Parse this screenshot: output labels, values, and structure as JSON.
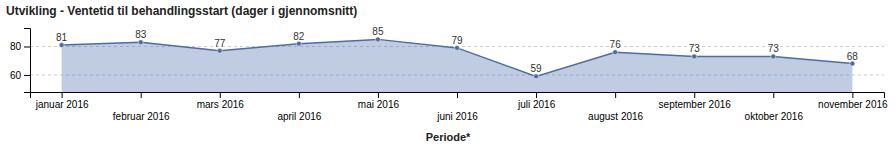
{
  "chart_data": {
    "type": "area",
    "title": "Utvikling - Ventetid til behandlingsstart (dager i gjennomsnitt)",
    "x_label": "Periode*",
    "categories": [
      "januar 2016",
      "februar 2016",
      "mars 2016",
      "april 2016",
      "mai 2016",
      "juni 2016",
      "juli 2016",
      "august 2016",
      "september 2016",
      "oktober 2016",
      "november 2016"
    ],
    "values": [
      81,
      83,
      77,
      82,
      85,
      79,
      59,
      76,
      73,
      73,
      68
    ],
    "color": "#4a6da8",
    "ylim": [
      48,
      93
    ],
    "yticks": [
      60,
      80
    ],
    "grid": true,
    "data_labels": true,
    "marker": "circle"
  }
}
